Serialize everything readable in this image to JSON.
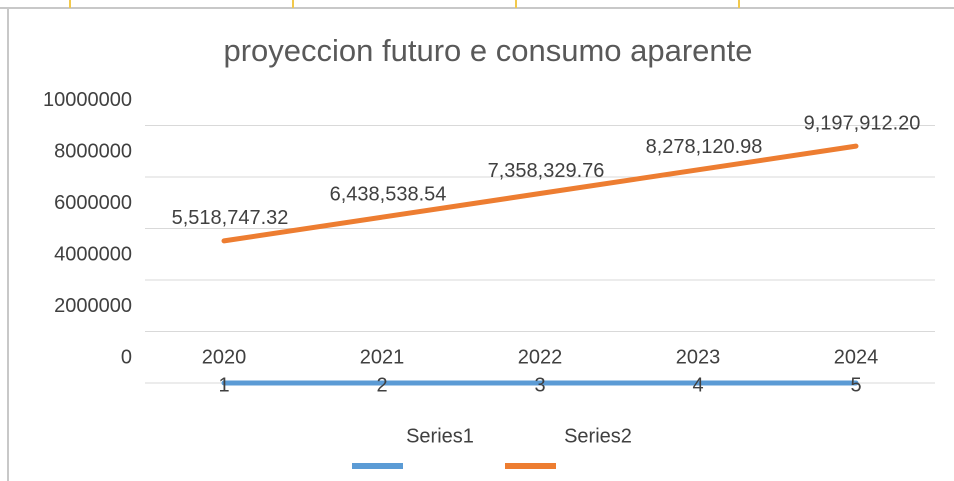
{
  "chart_data": {
    "type": "line",
    "title": "proyeccion futuro e consumo aparente",
    "categories": [
      "2020",
      "2021",
      "2022",
      "2023",
      "2024"
    ],
    "series": [
      {
        "name": "Series1",
        "color": "#5b9bd5",
        "values": [
          1,
          2,
          3,
          4,
          5
        ]
      },
      {
        "name": "Series2",
        "color": "#ed7d31",
        "values": [
          5518747.32,
          6438538.54,
          7358329.76,
          8278120.98,
          9197912.2
        ],
        "value_labels": [
          "5,518,747.32",
          "6,438,538.54",
          "7,358,329.76",
          "8,278,120.98",
          "9,197,912.20"
        ]
      }
    ],
    "ylim": [
      0,
      10000000
    ],
    "yticks": [
      0,
      2000000,
      4000000,
      6000000,
      8000000,
      10000000
    ],
    "grid": true,
    "legend": "bottom"
  }
}
